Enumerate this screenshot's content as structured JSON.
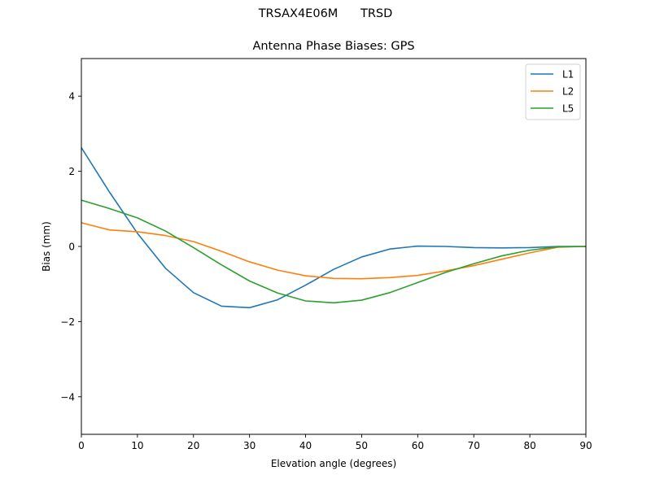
{
  "figure": {
    "suptitle_left": "TRSAX4E06M",
    "suptitle_right": "TRSD",
    "title": "Antenna Phase Biases: GPS"
  },
  "chart_data": {
    "type": "line",
    "title": "Antenna Phase Biases: GPS",
    "suptitle": "TRSAX4E06M      TRSD",
    "xlabel": "Elevation angle (degrees)",
    "ylabel": "Bias (mm)",
    "xlim": [
      0,
      90
    ],
    "ylim": [
      -5,
      5
    ],
    "xticks": [
      0,
      10,
      20,
      30,
      40,
      50,
      60,
      70,
      80,
      90
    ],
    "yticks": [
      -4,
      -2,
      0,
      2,
      4
    ],
    "ytick_labels": [
      "−4",
      "−2",
      "0",
      "2",
      "4"
    ],
    "grid": false,
    "legend_position": "upper right",
    "x": [
      0,
      5,
      10,
      15,
      20,
      25,
      30,
      35,
      40,
      45,
      50,
      55,
      60,
      65,
      70,
      75,
      80,
      85,
      90
    ],
    "series": [
      {
        "name": "L1",
        "color": "#1f77b4",
        "values": [
          2.63,
          1.45,
          0.35,
          -0.58,
          -1.23,
          -1.59,
          -1.63,
          -1.42,
          -1.03,
          -0.61,
          -0.28,
          -0.07,
          0.01,
          0.0,
          -0.03,
          -0.04,
          -0.03,
          0.0,
          0.0
        ]
      },
      {
        "name": "L2",
        "color": "#ff7f0e",
        "values": [
          0.63,
          0.44,
          0.39,
          0.29,
          0.13,
          -0.13,
          -0.41,
          -0.63,
          -0.78,
          -0.85,
          -0.86,
          -0.83,
          -0.77,
          -0.65,
          -0.51,
          -0.34,
          -0.17,
          -0.02,
          0.0
        ]
      },
      {
        "name": "L5",
        "color": "#2ca02c",
        "values": [
          1.23,
          1.01,
          0.76,
          0.41,
          -0.03,
          -0.49,
          -0.92,
          -1.24,
          -1.45,
          -1.5,
          -1.43,
          -1.23,
          -0.96,
          -0.69,
          -0.46,
          -0.25,
          -0.1,
          -0.01,
          0.0
        ]
      }
    ]
  }
}
